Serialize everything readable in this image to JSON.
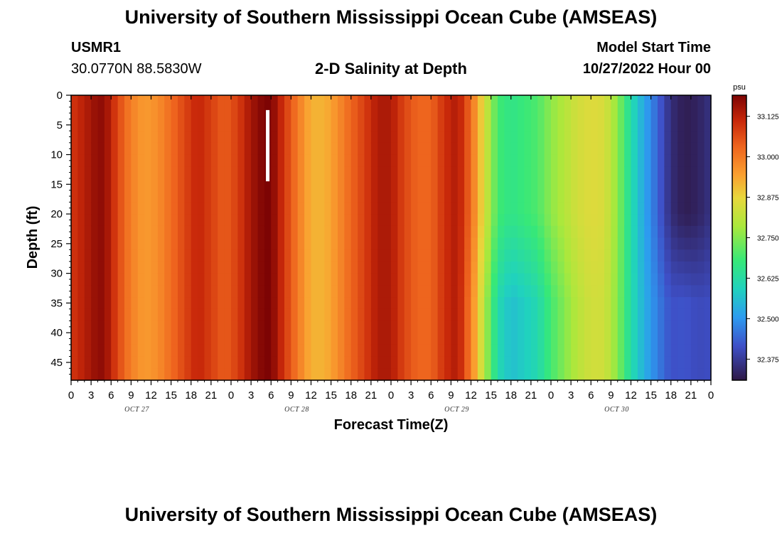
{
  "header": {
    "title": "University of Southern Mississippi Ocean Cube (AMSEAS)",
    "station_id": "USMR1",
    "coordinates": "30.0770N  88.5830W",
    "chart_title": "2-D Salinity at Depth",
    "model_start_label": "Model Start Time",
    "model_start_value": "10/27/2022 Hour 00",
    "footer_title": "University of Southern Mississippi Ocean Cube (AMSEAS)"
  },
  "chart_data": {
    "type": "heatmap",
    "title": "2-D Salinity at Depth",
    "xlabel": "Forecast Time(Z)",
    "ylabel": "Depth (ft)",
    "xlim": [
      0,
      96
    ],
    "ylim": [
      0,
      48
    ],
    "x_tick_labels": [
      "0",
      "3",
      "6",
      "9",
      "12",
      "15",
      "18",
      "21",
      "0",
      "3",
      "6",
      "9",
      "12",
      "15",
      "18",
      "21",
      "0",
      "3",
      "6",
      "9",
      "12",
      "15",
      "18",
      "21",
      "0",
      "3",
      "6",
      "9",
      "12",
      "15",
      "18",
      "21",
      "0"
    ],
    "y_ticks": [
      0,
      5,
      10,
      15,
      20,
      25,
      30,
      35,
      40,
      45
    ],
    "date_labels": [
      "OCT 27",
      "OCT 28",
      "OCT 29",
      "OCT 30"
    ],
    "colorbar": {
      "unit": "psu",
      "ticks": [
        "33.125",
        "33.000",
        "32.875",
        "32.750",
        "32.625",
        "32.500",
        "32.375"
      ],
      "range": [
        32.31,
        33.19
      ]
    },
    "salinity_by_hour": [
      [
        0,
        33.09
      ],
      [
        2,
        33.13
      ],
      [
        4,
        33.17
      ],
      [
        5,
        33.17
      ],
      [
        7,
        33.07
      ],
      [
        9,
        32.99
      ],
      [
        11,
        32.95
      ],
      [
        13,
        32.97
      ],
      [
        15,
        33.02
      ],
      [
        17,
        33.07
      ],
      [
        19,
        33.12
      ],
      [
        21,
        33.08
      ],
      [
        23,
        33.04
      ],
      [
        25,
        33.08
      ],
      [
        27,
        33.15
      ],
      [
        29,
        33.19
      ],
      [
        30,
        33.19
      ],
      [
        32,
        33.09
      ],
      [
        34,
        33.0
      ],
      [
        36,
        32.92
      ],
      [
        38,
        32.92
      ],
      [
        40,
        32.97
      ],
      [
        42,
        33.03
      ],
      [
        44,
        33.08
      ],
      [
        46,
        33.14
      ],
      [
        48,
        33.14
      ],
      [
        50,
        33.07
      ],
      [
        52,
        33.03
      ],
      [
        54,
        33.03
      ],
      [
        56,
        33.1
      ],
      [
        58,
        33.14
      ],
      [
        60,
        33.02
      ],
      [
        62,
        32.85
      ],
      [
        64,
        32.69
      ],
      [
        66,
        32.66
      ],
      [
        68,
        32.68
      ],
      [
        70,
        32.7
      ],
      [
        72,
        32.76
      ],
      [
        74,
        32.8
      ],
      [
        76,
        32.84
      ],
      [
        78,
        32.86
      ],
      [
        80,
        32.85
      ],
      [
        82,
        32.76
      ],
      [
        84,
        32.62
      ],
      [
        86,
        32.52
      ],
      [
        88,
        32.44
      ],
      [
        90,
        32.35
      ],
      [
        92,
        32.32
      ],
      [
        94,
        32.33
      ],
      [
        96,
        32.36
      ]
    ],
    "deep_water_offset": [
      [
        58,
        0.0
      ],
      [
        62,
        -0.05
      ],
      [
        66,
        -0.1
      ],
      [
        70,
        -0.09
      ],
      [
        74,
        -0.05
      ],
      [
        78,
        -0.02
      ],
      [
        84,
        0.0
      ],
      [
        88,
        0.03
      ],
      [
        92,
        0.1
      ],
      [
        96,
        0.05
      ]
    ],
    "marker": {
      "hour": 29.5,
      "depth_range": [
        2.5,
        14.5
      ],
      "color": "#ffffff"
    }
  }
}
